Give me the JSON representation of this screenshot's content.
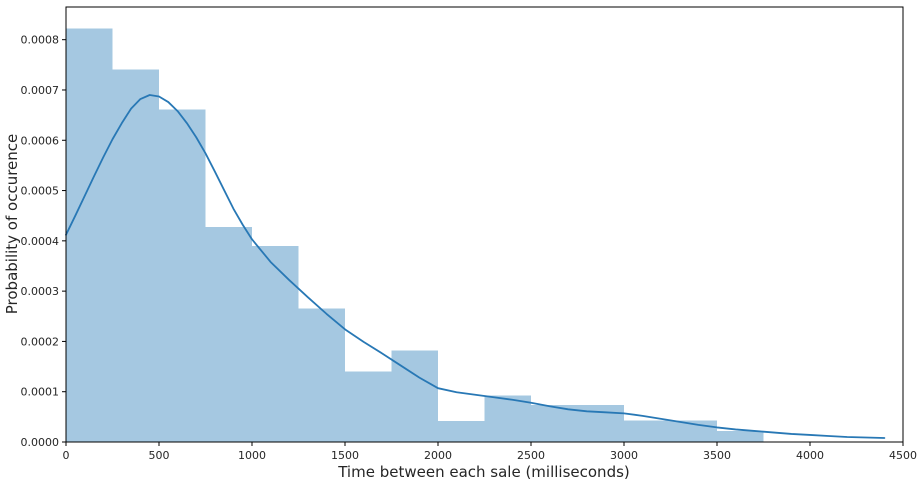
{
  "figure": {
    "background": "#ffffff"
  },
  "chart_data": {
    "type": "bar",
    "subtype": "histogram_with_kde",
    "title": "",
    "xlabel": "Time between each sale (milliseconds)",
    "ylabel": "Probability of occurence",
    "xlim": [
      0,
      4500
    ],
    "ylim": [
      0,
      0.000865
    ],
    "grid": false,
    "legend": false,
    "x_ticks": [
      0,
      500,
      1000,
      1500,
      2000,
      2500,
      3000,
      3500,
      4000,
      4500
    ],
    "x_tick_labels": [
      "0",
      "500",
      "1000",
      "1500",
      "2000",
      "2500",
      "3000",
      "3500",
      "4000",
      "4500"
    ],
    "y_ticks": [
      0.0,
      0.0001,
      0.0002,
      0.0003,
      0.0004,
      0.0005,
      0.0006,
      0.0007,
      0.0008
    ],
    "y_tick_labels": [
      "0.0000",
      "0.0001",
      "0.0002",
      "0.0003",
      "0.0004",
      "0.0005",
      "0.0006",
      "0.0007",
      "0.0008"
    ],
    "histogram": {
      "bin_width": 250,
      "bin_edges": [
        0,
        250,
        500,
        750,
        1000,
        1250,
        1500,
        1750,
        2000,
        2250,
        2500,
        2750,
        3000,
        3250,
        3500,
        3750
      ],
      "densities": [
        0.000822,
        0.000741,
        0.000661,
        0.000428,
        0.00039,
        0.000265,
        0.00014,
        0.000182,
        4.2e-05,
        9.2e-05,
        7.4e-05,
        7.4e-05,
        4.3e-05,
        4.3e-05,
        2.2e-05
      ]
    },
    "kde": {
      "x": [
        0,
        50,
        100,
        150,
        200,
        250,
        300,
        350,
        400,
        450,
        500,
        550,
        600,
        650,
        700,
        750,
        800,
        850,
        900,
        950,
        1000,
        1100,
        1200,
        1300,
        1400,
        1500,
        1600,
        1700,
        1800,
        1900,
        2000,
        2100,
        2200,
        2300,
        2400,
        2500,
        2600,
        2700,
        2800,
        2900,
        3000,
        3100,
        3200,
        3300,
        3400,
        3500,
        3600,
        3700,
        3800,
        3900,
        4000,
        4100,
        4200,
        4300,
        4400
      ],
      "y": [
        0.000412,
        0.00045,
        0.000489,
        0.000528,
        0.000566,
        0.000602,
        0.000634,
        0.000663,
        0.000682,
        0.00069,
        0.000687,
        0.000676,
        0.000658,
        0.000634,
        0.000606,
        0.000574,
        0.000538,
        0.000501,
        0.000464,
        0.000432,
        0.000403,
        0.000358,
        0.000322,
        0.000288,
        0.000255,
        0.000224,
        0.000199,
        0.000176,
        0.000152,
        0.000128,
        0.000107,
        9.9e-05,
        9.4e-05,
        8.9e-05,
        8.4e-05,
        7.8e-05,
        7.1e-05,
        6.5e-05,
        6.1e-05,
        5.9e-05,
        5.7e-05,
        5.2e-05,
        4.6e-05,
        4e-05,
        3.4e-05,
        2.9e-05,
        2.5e-05,
        2.2e-05,
        1.9e-05,
        1.6e-05,
        1.4e-05,
        1.2e-05,
        1e-05,
        9e-06,
        8e-06
      ]
    },
    "colors": {
      "bar_fill": "#a5c8e1",
      "kde_line": "#2878b5",
      "spine": "#000000",
      "tick_text": "#262626",
      "label_text": "#262626"
    }
  }
}
